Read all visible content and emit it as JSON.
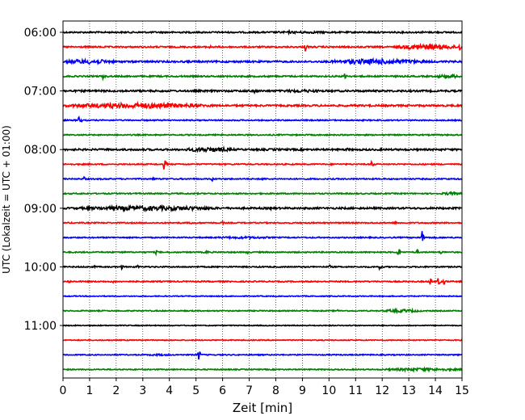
{
  "chart_data": {
    "type": "line",
    "title": "",
    "xlabel": "Zeit  [min]",
    "ylabel": "UTC (Lokalzeit = UTC + 01:00)",
    "xlim": [
      0,
      15
    ],
    "xticks": [
      "0",
      "1",
      "2",
      "3",
      "4",
      "5",
      "6",
      "7",
      "8",
      "9",
      "10",
      "11",
      "12",
      "13",
      "14",
      "15"
    ],
    "y_tick_labels": [
      {
        "row": 0,
        "label": "06:00"
      },
      {
        "row": 4,
        "label": "07:00"
      },
      {
        "row": 8,
        "label": "08:00"
      },
      {
        "row": 12,
        "label": "09:00"
      },
      {
        "row": 16,
        "label": "10:00"
      },
      {
        "row": 20,
        "label": "11:00"
      }
    ],
    "grid": "vertical dotted at each minute",
    "trace_colors": [
      "#000000",
      "#ff0000",
      "#0000ff",
      "#008000"
    ],
    "traces": [
      {
        "start": "06:00",
        "base_amp": 0.1,
        "noisy_segments": [
          [
            7.5,
            10.5,
            0.15
          ]
        ],
        "events": [
          [
            8.5,
            0.25
          ],
          [
            13.5,
            0.2
          ]
        ]
      },
      {
        "start": "06:15",
        "base_amp": 0.1,
        "noisy_segments": [
          [
            12.5,
            15.0,
            0.35
          ]
        ],
        "events": [
          [
            5.5,
            0.35
          ],
          [
            9.1,
            0.8
          ],
          [
            14.9,
            0.7
          ]
        ]
      },
      {
        "start": "06:30",
        "base_amp": 0.12,
        "noisy_segments": [
          [
            0.0,
            2.0,
            0.3
          ],
          [
            10.0,
            13.5,
            0.35
          ]
        ],
        "events": [
          [
            4.7,
            0.3
          ],
          [
            13.5,
            0.6
          ]
        ]
      },
      {
        "start": "06:45",
        "base_amp": 0.1,
        "noisy_segments": [
          [
            14.0,
            15.0,
            0.25
          ]
        ],
        "events": [
          [
            1.5,
            0.5
          ],
          [
            10.6,
            0.75
          ]
        ]
      },
      {
        "start": "07:00",
        "base_amp": 0.12,
        "noisy_segments": [
          [
            8.0,
            10.0,
            0.2
          ]
        ],
        "events": [
          [
            6.8,
            0.3
          ],
          [
            7.2,
            0.3
          ]
        ]
      },
      {
        "start": "07:15",
        "base_amp": 0.12,
        "noisy_segments": [
          [
            0.0,
            5.5,
            0.35
          ]
        ],
        "events": [
          [
            5.5,
            0.3
          ]
        ]
      },
      {
        "start": "07:30",
        "base_amp": 0.08,
        "noisy_segments": [],
        "events": [
          [
            0.6,
            0.8
          ]
        ]
      },
      {
        "start": "07:45",
        "base_amp": 0.08,
        "noisy_segments": [],
        "events": []
      },
      {
        "start": "08:00",
        "base_amp": 0.12,
        "noisy_segments": [
          [
            4.5,
            6.5,
            0.3
          ],
          [
            7.5,
            8.5,
            0.15
          ]
        ],
        "events": [
          [
            10.7,
            0.3
          ]
        ]
      },
      {
        "start": "08:15",
        "base_amp": 0.08,
        "noisy_segments": [],
        "events": [
          [
            3.8,
            0.9
          ],
          [
            11.6,
            0.6
          ]
        ]
      },
      {
        "start": "08:30",
        "base_amp": 0.08,
        "noisy_segments": [],
        "events": [
          [
            0.8,
            0.35
          ],
          [
            3.4,
            0.3
          ],
          [
            5.6,
            0.35
          ],
          [
            7.5,
            0.3
          ]
        ]
      },
      {
        "start": "08:45",
        "base_amp": 0.08,
        "noisy_segments": [
          [
            14.2,
            15.0,
            0.2
          ]
        ],
        "events": []
      },
      {
        "start": "09:00",
        "base_amp": 0.12,
        "noisy_segments": [
          [
            0.5,
            6.0,
            0.3
          ]
        ],
        "events": [
          [
            7.8,
            0.25
          ]
        ]
      },
      {
        "start": "09:15",
        "base_amp": 0.08,
        "noisy_segments": [],
        "events": [
          [
            4.8,
            0.25
          ],
          [
            6.0,
            0.25
          ],
          [
            12.5,
            0.25
          ]
        ]
      },
      {
        "start": "09:30",
        "base_amp": 0.08,
        "noisy_segments": [
          [
            5.5,
            8.0,
            0.15
          ]
        ],
        "events": [
          [
            13.5,
            0.95
          ]
        ]
      },
      {
        "start": "09:45",
        "base_amp": 0.08,
        "noisy_segments": [],
        "events": [
          [
            2.2,
            0.35
          ],
          [
            3.5,
            0.35
          ],
          [
            5.4,
            0.35
          ],
          [
            6.9,
            0.35
          ],
          [
            12.6,
            0.85
          ],
          [
            13.3,
            0.4
          ],
          [
            14.2,
            0.4
          ]
        ]
      },
      {
        "start": "10:00",
        "base_amp": 0.08,
        "noisy_segments": [],
        "events": [
          [
            1.2,
            0.35
          ],
          [
            2.2,
            0.35
          ],
          [
            2.8,
            0.35
          ],
          [
            10.0,
            0.4
          ],
          [
            11.9,
            0.4
          ]
        ]
      },
      {
        "start": "10:15",
        "base_amp": 0.08,
        "noisy_segments": [],
        "events": [
          [
            0.2,
            0.35
          ],
          [
            1.9,
            0.3
          ],
          [
            13.8,
            0.6
          ],
          [
            14.1,
            0.7
          ],
          [
            14.3,
            0.6
          ]
        ]
      },
      {
        "start": "10:30",
        "base_amp": 0.06,
        "noisy_segments": [],
        "events": []
      },
      {
        "start": "10:45",
        "base_amp": 0.07,
        "noisy_segments": [
          [
            12.0,
            13.5,
            0.2
          ]
        ],
        "events": [
          [
            10.3,
            0.25
          ]
        ]
      },
      {
        "start": "11:00",
        "base_amp": 0.06,
        "noisy_segments": [],
        "events": [
          [
            10.8,
            0.2
          ]
        ]
      },
      {
        "start": "11:15",
        "base_amp": 0.06,
        "noisy_segments": [],
        "events": []
      },
      {
        "start": "11:30",
        "base_amp": 0.07,
        "noisy_segments": [
          [
            3.0,
            4.2,
            0.12
          ]
        ],
        "events": [
          [
            5.1,
            0.85
          ]
        ]
      },
      {
        "start": "11:45",
        "base_amp": 0.07,
        "noisy_segments": [
          [
            12.0,
            15.0,
            0.2
          ]
        ],
        "events": []
      }
    ]
  }
}
